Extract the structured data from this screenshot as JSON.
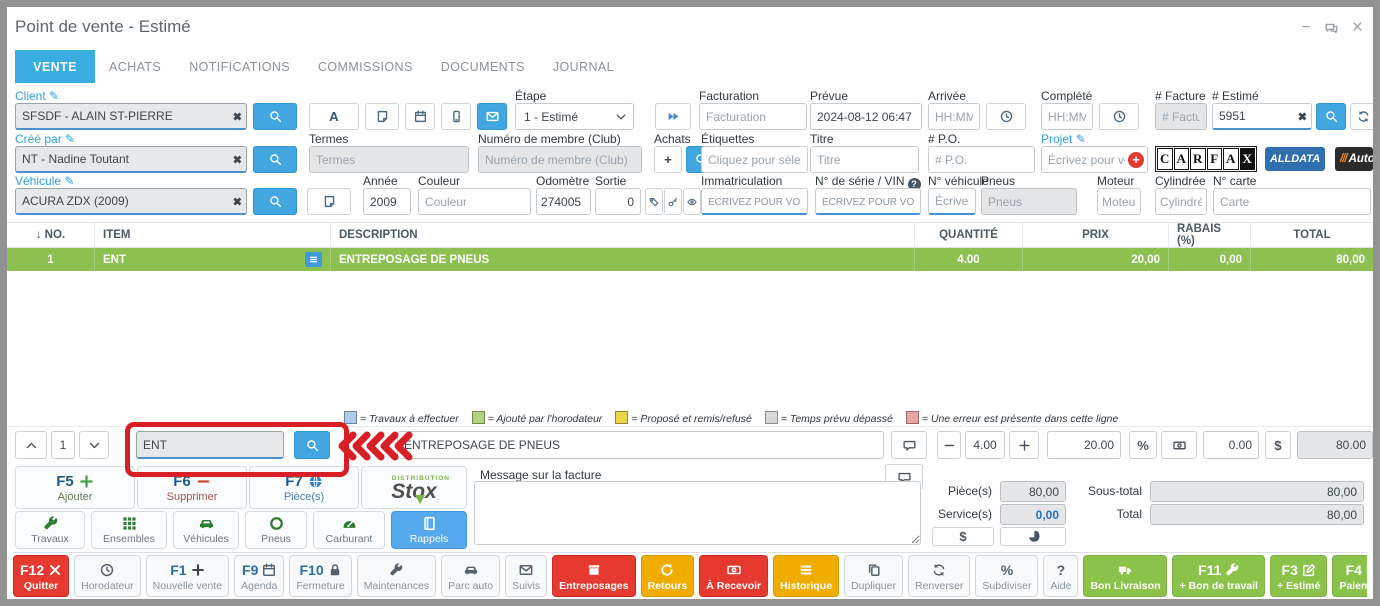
{
  "window": {
    "title": "Point de vente - Estimé"
  },
  "icons": {
    "pencil": "✎",
    "clear": "✖",
    "minimize": "−",
    "close": "×",
    "a_letter": "A",
    "percent": "%",
    "dollar": "$",
    "question": "?",
    "help": "?",
    "plus_char": "+",
    "sort_down": "↓"
  },
  "tabs": [
    {
      "label": "VENTE"
    },
    {
      "label": "ACHATS"
    },
    {
      "label": "NOTIFICATIONS"
    },
    {
      "label": "COMMISSIONS"
    },
    {
      "label": "DOCUMENTS"
    },
    {
      "label": "JOURNAL"
    }
  ],
  "form": {
    "client": {
      "label": "Client",
      "value": "SFSDF - ALAIN ST-PIERRE"
    },
    "etape": {
      "label": "Étape",
      "value": "1 - Estimé"
    },
    "facturation": {
      "label": "Facturation",
      "placeholder": "Facturation"
    },
    "prevue": {
      "label": "Prévue",
      "value": "2024-08-12 06:47"
    },
    "arrivee": {
      "label": "Arrivée",
      "placeholder": "HH:MM"
    },
    "complete": {
      "label": "Complété",
      "placeholder": "HH:MM"
    },
    "facture": {
      "label": "# Facture",
      "placeholder": "# Facture"
    },
    "estime": {
      "label": "# Estimé",
      "value": "5951"
    },
    "cree_par": {
      "label": "Créé par",
      "value": "NT - Nadine Toutant"
    },
    "termes": {
      "label": "Termes",
      "placeholder": "Termes"
    },
    "membre": {
      "label": "Numéro de membre (Club)",
      "placeholder": "Numéro de membre (Club)"
    },
    "achats": {
      "label": "Achats"
    },
    "etiquettes": {
      "label": "Étiquettes",
      "placeholder": "Cliquez pour sélection"
    },
    "titre": {
      "label": "Titre",
      "placeholder": "Titre"
    },
    "po": {
      "label": "# P.O.",
      "placeholder": "# P.O."
    },
    "projet": {
      "label": "Projet",
      "placeholder": "Écrivez pour voir d"
    },
    "vehicule": {
      "label": "Véhicule",
      "value": "ACURA ZDX (2009)"
    },
    "annee": {
      "label": "Année",
      "value": "2009"
    },
    "couleur": {
      "label": "Couleur",
      "placeholder": "Couleur"
    },
    "odometre": {
      "label": "Odomètre",
      "value": "274005"
    },
    "sortie": {
      "label": "Sortie",
      "value": "0"
    },
    "immatriculation": {
      "label": "Immatriculation",
      "placeholder": "ÉCRIVEZ POUR VOIR"
    },
    "vin": {
      "label": "N° de série / VIN",
      "placeholder": "ÉCRIVEZ POUR VOIR"
    },
    "no_vehicule": {
      "label": "N° véhicule",
      "placeholder": "Écrivez pour voir"
    },
    "pneus": {
      "label": "Pneus",
      "placeholder": "Pneus"
    },
    "moteur": {
      "label": "Moteur",
      "placeholder": "Moteur"
    },
    "cylindree": {
      "label": "Cylindrée",
      "placeholder": "Cylindrée"
    },
    "carte": {
      "label": "N° carte",
      "placeholder": "Carte"
    }
  },
  "logos": {
    "carfax": "CARFAX",
    "alldata": "ALLDATA",
    "autoserve_slashes": "///",
    "autoserve": "Auto S"
  },
  "table": {
    "sort_icon": "↓",
    "headers": [
      "NO.",
      "ITEM",
      "DESCRIPTION",
      "QUANTITÉ",
      "PRIX",
      "RABAIS (%)",
      "TOTAL"
    ],
    "rows": [
      {
        "no": "1",
        "item": "ENT",
        "description": "ENTREPOSAGE DE PNEUS",
        "qty": "4.00",
        "price": "20,00",
        "discount": "0,00",
        "total": "80,00"
      }
    ]
  },
  "legend": [
    {
      "color": "#aecbeb",
      "label": "= Travaux à effectuer"
    },
    {
      "color": "#b2d47e",
      "label": "= Ajouté par l'horodateur"
    },
    {
      "color": "#ecd54b",
      "label": "= Proposé et remis/refusé"
    },
    {
      "color": "#d8d8d8",
      "label": "= Temps prévu dépassé"
    },
    {
      "color": "#e9a6a0",
      "label": "= Une erreur est présente dans cette ligne"
    }
  ],
  "entry": {
    "line": "1",
    "item": "ENT",
    "description": "ENTREPOSAGE DE PNEUS",
    "qty": "4.00",
    "price": "20.00",
    "discount": "0.00",
    "total": "80.00"
  },
  "panel": {
    "f5": {
      "key": "F5",
      "label": "Ajouter"
    },
    "f6": {
      "key": "F6",
      "label": "Supprimer"
    },
    "f7": {
      "key": "F7",
      "label": "Pièce(s)"
    },
    "stox": {
      "small": "DISTRIBUTION",
      "word": "Stox"
    },
    "tools": [
      {
        "label": "Travaux"
      },
      {
        "label": "Ensembles"
      },
      {
        "label": "Véhicules"
      },
      {
        "label": "Pneus"
      },
      {
        "label": "Carburant"
      },
      {
        "label": "Rappels"
      }
    ],
    "message_label": "Message sur la facture"
  },
  "totals": {
    "pieces_label": "Pièce(s)",
    "pieces": "80,00",
    "services_label": "Service(s)",
    "services": "0,00",
    "subtotal_label": "Sous-total",
    "subtotal": "80,00",
    "total_label": "Total",
    "total": "80,00"
  },
  "bottombar": [
    {
      "key": "F12",
      "label": "Quitter",
      "style": "red"
    },
    {
      "key": "",
      "label": "Horodateur",
      "style": ""
    },
    {
      "key": "F1",
      "label": "Nouvelle vente",
      "style": ""
    },
    {
      "key": "F9",
      "label": "Agenda",
      "style": ""
    },
    {
      "key": "F10",
      "label": "Fermeture",
      "style": ""
    },
    {
      "key": "",
      "label": "Maintenances",
      "style": ""
    },
    {
      "key": "",
      "label": "Parc auto",
      "style": ""
    },
    {
      "key": "",
      "label": "Suivis",
      "style": ""
    },
    {
      "key": "",
      "label": "Entreposages",
      "style": "red"
    },
    {
      "key": "",
      "label": "Retours",
      "style": "amber"
    },
    {
      "key": "",
      "label": "À Recevoir",
      "style": "red"
    },
    {
      "key": "",
      "label": "Historique",
      "style": "amber"
    },
    {
      "key": "",
      "label": "Dupliquer",
      "style": ""
    },
    {
      "key": "",
      "label": "Renverser",
      "style": ""
    },
    {
      "key": "",
      "label": "Subdiviser",
      "style": ""
    },
    {
      "key": "",
      "label": "Aide",
      "style": ""
    },
    {
      "key": "",
      "label": "Bon Livraison",
      "style": "green"
    },
    {
      "key": "F11",
      "label": "+ Bon de travail",
      "style": "green"
    },
    {
      "key": "F3",
      "label": "+ Estimé",
      "style": "green"
    },
    {
      "key": "F4",
      "label": "Paiement",
      "style": "green"
    }
  ],
  "colors": {
    "accent_blue": "#39ade2",
    "green_row": "#8cc152",
    "button_green": "#8bc34a",
    "red": "#e6392f",
    "amber": "#f0ad00",
    "link_blue": "#2d9fe0",
    "highlight_red": "#d91f26"
  }
}
